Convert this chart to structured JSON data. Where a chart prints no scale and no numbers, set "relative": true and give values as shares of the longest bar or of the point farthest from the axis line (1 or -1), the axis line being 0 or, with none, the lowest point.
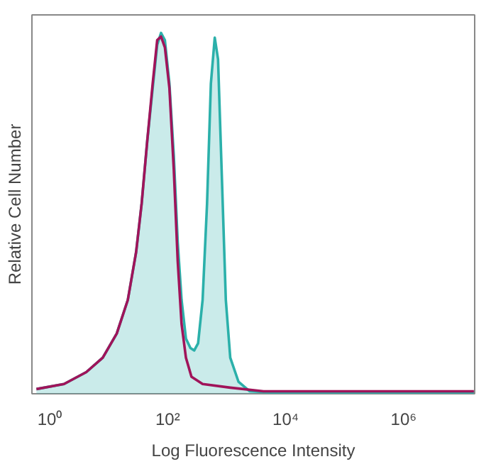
{
  "chart_data": {
    "type": "line",
    "xlabel": "Log Fluorescence Intensity",
    "ylabel": "Relative Cell Number",
    "log": "x",
    "relative": true,
    "grid": false,
    "tick_labels": "x",
    "xlim": [
      0.5,
      16000000
    ],
    "xticks": [
      {
        "value": 1,
        "label": "10⁰"
      },
      {
        "value": 100,
        "label": "10²"
      },
      {
        "value": 10000,
        "label": "10⁴"
      },
      {
        "value": 1000000,
        "label": "10⁶"
      }
    ],
    "series": [
      {
        "type": "area",
        "color": "#2bb0aa",
        "x": [
          0.596,
          1.75,
          4.17,
          7.94,
          13.7,
          21.1,
          29.2,
          36.2,
          45.0,
          55.7,
          66.4,
          77.1,
          89.7,
          107,
          127,
          148,
          172,
          204,
          243,
          282,
          328,
          391,
          465,
          540,
          628,
          714,
          832,
          968,
          1150,
          1590,
          2450,
          5220,
          15500000
        ],
        "values": [
          0.013,
          0.027,
          0.06,
          0.1,
          0.167,
          0.26,
          0.393,
          0.527,
          0.7,
          0.847,
          0.967,
          1.0,
          0.98,
          0.86,
          0.66,
          0.42,
          0.26,
          0.153,
          0.127,
          0.12,
          0.14,
          0.26,
          0.527,
          0.86,
          0.987,
          0.927,
          0.593,
          0.26,
          0.1,
          0.033,
          0.007,
          0.004,
          0.004
        ]
      },
      {
        "color": "#a0145a",
        "x": [
          0.596,
          1.75,
          4.17,
          7.94,
          13.7,
          21.1,
          29.2,
          36.2,
          45.0,
          55.7,
          66.4,
          77.1,
          89.7,
          107,
          127,
          148,
          172,
          204,
          253,
          391,
          1150,
          4210,
          15500000
        ],
        "values": [
          0.013,
          0.027,
          0.06,
          0.1,
          0.167,
          0.26,
          0.393,
          0.527,
          0.7,
          0.86,
          0.98,
          0.99,
          0.96,
          0.847,
          0.62,
          0.367,
          0.193,
          0.1,
          0.047,
          0.027,
          0.017,
          0.007,
          0.007
        ]
      }
    ]
  }
}
